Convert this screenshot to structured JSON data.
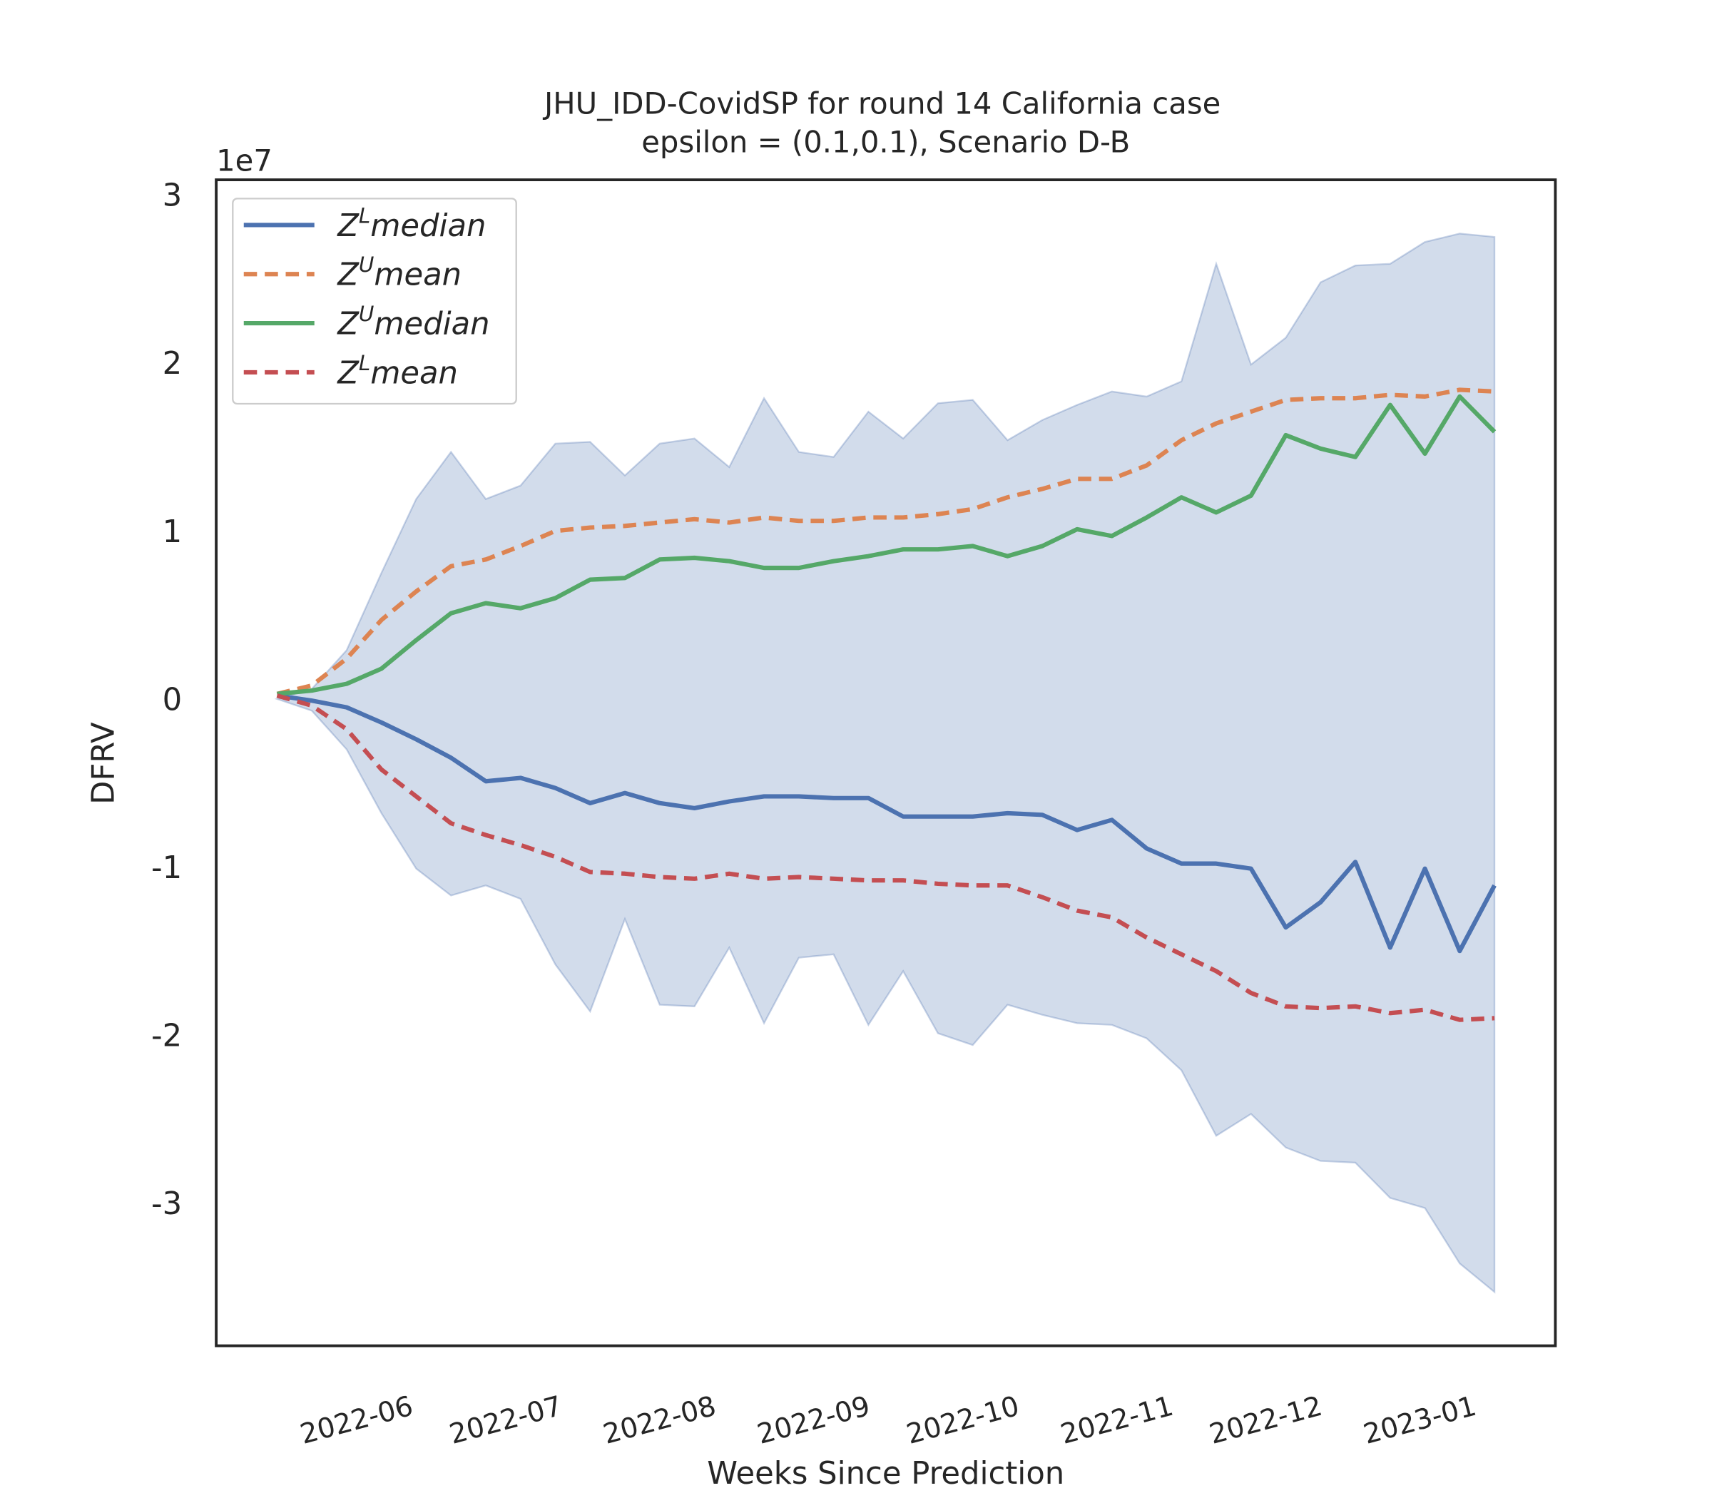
{
  "chart_data": {
    "type": "line",
    "title": "JHU_IDD-CovidSP for round 14 California  case",
    "subtitle": "epsilon = (0.1,0.1), Scenario D-B",
    "x_label": "Weeks Since Prediction",
    "y_label": "DFRV",
    "y_offset_label": "1e7",
    "x": [
      0,
      1,
      2,
      3,
      4,
      5,
      6,
      7,
      8,
      9,
      10,
      11,
      12,
      13,
      14,
      15,
      16,
      17,
      18,
      19,
      20,
      21,
      22,
      23,
      24,
      25,
      26,
      27,
      28,
      29,
      30,
      31,
      32,
      33,
      34,
      35
    ],
    "xlim": [
      -1.75,
      36.75
    ],
    "xticks": [
      {
        "value": 3,
        "label": "2022-06"
      },
      {
        "value": 7.29,
        "label": "2022-07"
      },
      {
        "value": 11.71,
        "label": "2022-08"
      },
      {
        "value": 16.14,
        "label": "2022-09"
      },
      {
        "value": 20.43,
        "label": "2022-10"
      },
      {
        "value": 24.86,
        "label": "2022-11"
      },
      {
        "value": 29.14,
        "label": "2022-12"
      },
      {
        "value": 33.57,
        "label": "2023-01"
      }
    ],
    "ylim": [
      -3.85,
      3.09
    ],
    "yticks": [
      -3,
      -2,
      -1,
      0,
      1,
      2,
      3
    ],
    "grid": false,
    "legend": "upper left",
    "band": {
      "color": "#4c72b0",
      "opacity": 0.25,
      "upper": [
        0,
        0.06,
        0.29,
        0.75,
        1.19,
        1.47,
        1.19,
        1.27,
        1.52,
        1.53,
        1.33,
        1.52,
        1.55,
        1.38,
        1.79,
        1.47,
        1.44,
        1.71,
        1.55,
        1.76,
        1.78,
        1.54,
        1.66,
        1.75,
        1.83,
        1.8,
        1.89,
        2.59,
        1.99,
        2.15,
        2.48,
        2.58,
        2.59,
        2.72,
        2.77,
        2.75
      ],
      "lower": [
        0,
        -0.07,
        -0.3,
        -0.68,
        -1.01,
        -1.17,
        -1.11,
        -1.19,
        -1.58,
        -1.86,
        -1.31,
        -1.82,
        -1.83,
        -1.48,
        -1.93,
        -1.54,
        -1.52,
        -1.94,
        -1.62,
        -1.99,
        -2.06,
        -1.82,
        -1.88,
        -1.93,
        -1.94,
        -2.02,
        -2.21,
        -2.6,
        -2.47,
        -2.67,
        -2.75,
        -2.76,
        -2.97,
        -3.03,
        -3.36,
        -3.53
      ]
    },
    "series": [
      {
        "name": [
          "Z",
          "L",
          "median"
        ],
        "color": "#4c72b0",
        "dashed": false,
        "values": [
          0.02,
          -0.01,
          -0.05,
          -0.14,
          -0.24,
          -0.35,
          -0.49,
          -0.47,
          -0.53,
          -0.62,
          -0.56,
          -0.62,
          -0.65,
          -0.61,
          -0.58,
          -0.58,
          -0.59,
          -0.59,
          -0.7,
          -0.7,
          -0.7,
          -0.68,
          -0.69,
          -0.78,
          -0.72,
          -0.89,
          -0.98,
          -0.98,
          -1.01,
          -1.36,
          -1.21,
          -0.97,
          -1.48,
          -1.01,
          -1.5,
          -1.11
        ]
      },
      {
        "name": [
          "Z",
          "U",
          "mean"
        ],
        "color": "#dd8452",
        "dashed": true,
        "values": [
          0.03,
          0.08,
          0.24,
          0.47,
          0.64,
          0.79,
          0.83,
          0.91,
          1.0,
          1.02,
          1.03,
          1.05,
          1.07,
          1.05,
          1.08,
          1.06,
          1.06,
          1.08,
          1.08,
          1.1,
          1.13,
          1.2,
          1.25,
          1.31,
          1.31,
          1.39,
          1.54,
          1.64,
          1.71,
          1.78,
          1.79,
          1.79,
          1.81,
          1.8,
          1.84,
          1.83
        ]
      },
      {
        "name": [
          "Z",
          "U",
          "median"
        ],
        "color": "#55a868",
        "dashed": false,
        "values": [
          0.03,
          0.05,
          0.09,
          0.18,
          0.35,
          0.51,
          0.57,
          0.54,
          0.6,
          0.71,
          0.72,
          0.83,
          0.84,
          0.82,
          0.78,
          0.78,
          0.82,
          0.85,
          0.89,
          0.89,
          0.91,
          0.85,
          0.91,
          1.01,
          0.97,
          1.08,
          1.2,
          1.11,
          1.21,
          1.57,
          1.49,
          1.44,
          1.75,
          1.46,
          1.8,
          1.59
        ]
      },
      {
        "name": [
          "Z",
          "L",
          "mean"
        ],
        "color": "#c44e52",
        "dashed": true,
        "values": [
          0.02,
          -0.04,
          -0.18,
          -0.42,
          -0.58,
          -0.74,
          -0.81,
          -0.87,
          -0.94,
          -1.03,
          -1.04,
          -1.06,
          -1.07,
          -1.04,
          -1.07,
          -1.06,
          -1.07,
          -1.08,
          -1.08,
          -1.1,
          -1.11,
          -1.11,
          -1.18,
          -1.26,
          -1.3,
          -1.42,
          -1.52,
          -1.62,
          -1.75,
          -1.83,
          -1.84,
          -1.83,
          -1.87,
          -1.85,
          -1.91,
          -1.9
        ]
      }
    ]
  }
}
